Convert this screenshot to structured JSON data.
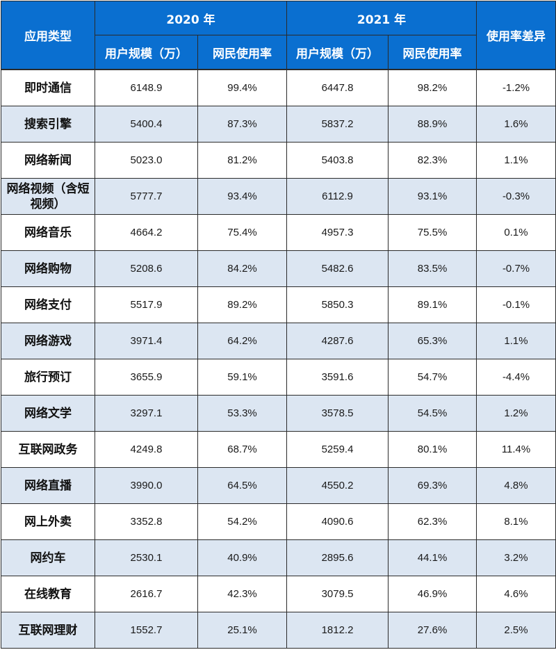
{
  "table": {
    "headers": {
      "category": "应用类型",
      "year_2020": "2020 年",
      "year_2021": "2021 年",
      "diff": "使用率差异",
      "scale": "用户规模（万）",
      "rate": "网民使用率"
    },
    "rows": [
      {
        "category": "即时通信",
        "u2020": "6148.9",
        "r2020": "99.4%",
        "u2021": "6447.8",
        "r2021": "98.2%",
        "diff": "-1.2%"
      },
      {
        "category": "搜索引擎",
        "u2020": "5400.4",
        "r2020": "87.3%",
        "u2021": "5837.2",
        "r2021": "88.9%",
        "diff": "1.6%"
      },
      {
        "category": "网络新闻",
        "u2020": "5023.0",
        "r2020": "81.2%",
        "u2021": "5403.8",
        "r2021": "82.3%",
        "diff": "1.1%"
      },
      {
        "category": "网络视频（含短视频）",
        "u2020": "5777.7",
        "r2020": "93.4%",
        "u2021": "6112.9",
        "r2021": "93.1%",
        "diff": "-0.3%"
      },
      {
        "category": "网络音乐",
        "u2020": "4664.2",
        "r2020": "75.4%",
        "u2021": "4957.3",
        "r2021": "75.5%",
        "diff": "0.1%"
      },
      {
        "category": "网络购物",
        "u2020": "5208.6",
        "r2020": "84.2%",
        "u2021": "5482.6",
        "r2021": "83.5%",
        "diff": "-0.7%"
      },
      {
        "category": "网络支付",
        "u2020": "5517.9",
        "r2020": "89.2%",
        "u2021": "5850.3",
        "r2021": "89.1%",
        "diff": "-0.1%"
      },
      {
        "category": "网络游戏",
        "u2020": "3971.4",
        "r2020": "64.2%",
        "u2021": "4287.6",
        "r2021": "65.3%",
        "diff": "1.1%"
      },
      {
        "category": "旅行预订",
        "u2020": "3655.9",
        "r2020": "59.1%",
        "u2021": "3591.6",
        "r2021": "54.7%",
        "diff": "-4.4%"
      },
      {
        "category": "网络文学",
        "u2020": "3297.1",
        "r2020": "53.3%",
        "u2021": "3578.5",
        "r2021": "54.5%",
        "diff": "1.2%"
      },
      {
        "category": "互联网政务",
        "u2020": "4249.8",
        "r2020": "68.7%",
        "u2021": "5259.4",
        "r2021": "80.1%",
        "diff": "11.4%"
      },
      {
        "category": "网络直播",
        "u2020": "3990.0",
        "r2020": "64.5%",
        "u2021": "4550.2",
        "r2021": "69.3%",
        "diff": "4.8%"
      },
      {
        "category": "网上外卖",
        "u2020": "3352.8",
        "r2020": "54.2%",
        "u2021": "4090.6",
        "r2021": "62.3%",
        "diff": "8.1%"
      },
      {
        "category": "网约车",
        "u2020": "2530.1",
        "r2020": "40.9%",
        "u2021": "2895.6",
        "r2021": "44.1%",
        "diff": "3.2%"
      },
      {
        "category": "在线教育",
        "u2020": "2616.7",
        "r2020": "42.3%",
        "u2021": "3079.5",
        "r2021": "46.9%",
        "diff": "4.6%"
      },
      {
        "category": "互联网理财",
        "u2020": "1552.7",
        "r2020": "25.1%",
        "u2021": "1812.2",
        "r2021": "27.6%",
        "diff": "2.5%"
      }
    ]
  }
}
